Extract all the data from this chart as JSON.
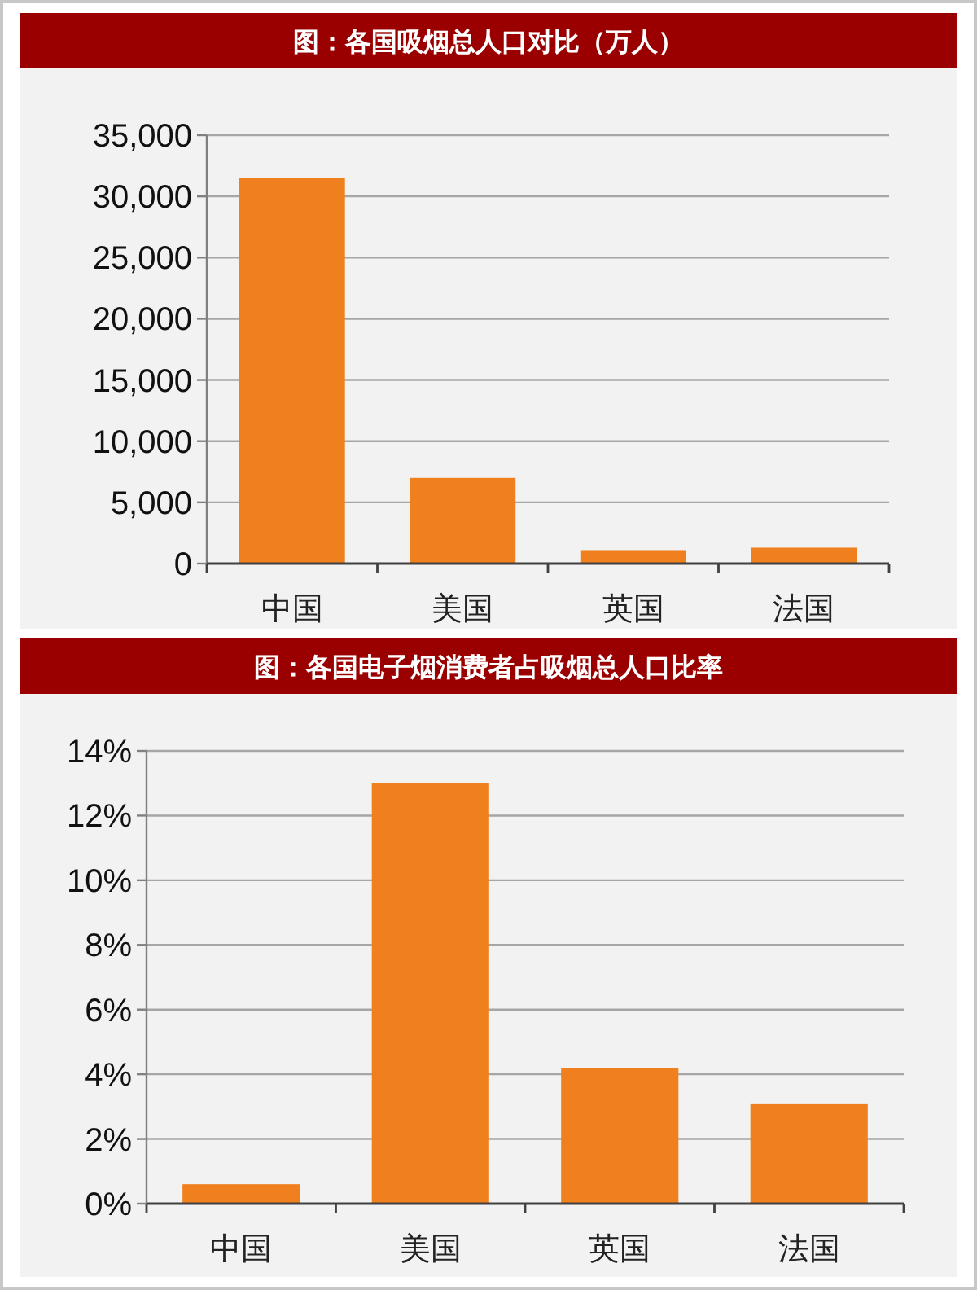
{
  "chart_data": [
    {
      "type": "bar",
      "title": "图：各国吸烟总人口对比（万人）",
      "categories": [
        "中国",
        "美国",
        "英国",
        "法国"
      ],
      "values": [
        31500,
        7000,
        1100,
        1300
      ],
      "color": "#f0801e",
      "ylim": [
        0,
        35000
      ],
      "yticks": [
        {
          "value": 0,
          "label": "0"
        },
        {
          "value": 5000,
          "label": "5,000"
        },
        {
          "value": 10000,
          "label": "10,000"
        },
        {
          "value": 15000,
          "label": "15,000"
        },
        {
          "value": 20000,
          "label": "20,000"
        },
        {
          "value": 25000,
          "label": "25,000"
        },
        {
          "value": 30000,
          "label": "30,000"
        },
        {
          "value": 35000,
          "label": "35,000"
        }
      ],
      "grid": "y"
    },
    {
      "type": "bar",
      "title": "图：各国电子烟消费者占吸烟总人口比率",
      "categories": [
        "中国",
        "美国",
        "英国",
        "法国"
      ],
      "values": [
        0.6,
        13,
        4.2,
        3.1
      ],
      "color": "#f0801e",
      "ylim": [
        0,
        14
      ],
      "yticks": [
        {
          "value": 0,
          "label": "0%"
        },
        {
          "value": 2,
          "label": "2%"
        },
        {
          "value": 4,
          "label": "4%"
        },
        {
          "value": 6,
          "label": "6%"
        },
        {
          "value": 8,
          "label": "8%"
        },
        {
          "value": 10,
          "label": "10%"
        },
        {
          "value": 12,
          "label": "12%"
        },
        {
          "value": 14,
          "label": "14%"
        }
      ],
      "grid": "y"
    }
  ]
}
